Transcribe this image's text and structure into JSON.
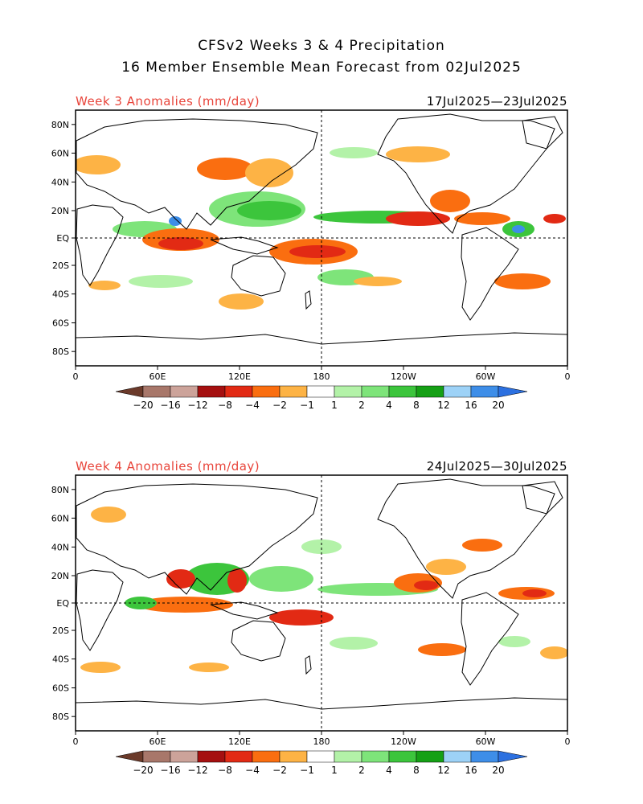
{
  "title_line1": "CFSv2 Weeks 3 & 4 Precipitation",
  "title_line2": "16 Member Ensemble Mean Forecast from 02Jul2025",
  "panels": [
    {
      "label": "Week 3 Anomalies (mm/day)",
      "dates": "17Jul2025—23Jul2025"
    },
    {
      "label": "Week 4 Anomalies (mm/day)",
      "dates": "24Jul2025—30Jul2025"
    }
  ],
  "lat_ticks": [
    "80N",
    "60N",
    "40N",
    "20N",
    "EQ",
    "20S",
    "40S",
    "60S",
    "80S"
  ],
  "lon_ticks": [
    "0",
    "60E",
    "120E",
    "180",
    "120W",
    "60W",
    "0"
  ],
  "colorbar": {
    "labels": [
      "−20",
      "−16",
      "−12",
      "−8",
      "−4",
      "−2",
      "−1",
      "1",
      "2",
      "4",
      "8",
      "12",
      "16",
      "20"
    ],
    "colors": [
      "#6b3a2a",
      "#a8776a",
      "#cca39a",
      "#a51010",
      "#e22a14",
      "#fa6e10",
      "#fdb345",
      "#ffffff",
      "#b3f2a8",
      "#7ee47a",
      "#3cc53c",
      "#15a015",
      "#9dd2f7",
      "#3e8ee8",
      "#2c70e0"
    ]
  }
}
